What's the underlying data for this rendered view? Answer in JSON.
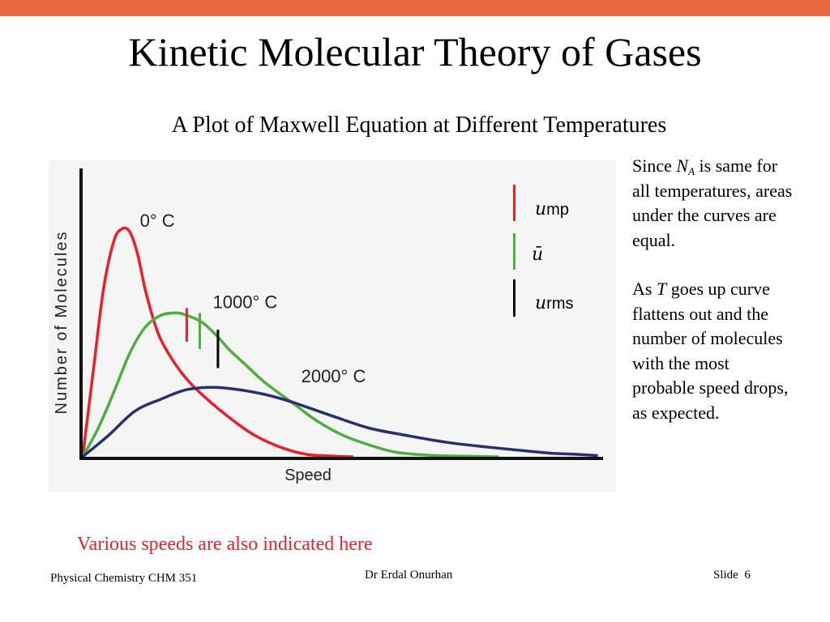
{
  "colors": {
    "accent": "#e8683f",
    "red": "#e8202a",
    "green": "#4caf3f",
    "navy": "#2a2e73"
  },
  "slide": {
    "title": "Kinetic Molecular Theory of Gases",
    "subtitle": "A Plot of Maxwell Equation at Different Temperatures"
  },
  "legend": {
    "items": [
      {
        "symbol": "u",
        "label": "mp",
        "color": "#e8202a"
      },
      {
        "symbol": "ū",
        "label": "",
        "color": "#4caf3f"
      },
      {
        "symbol": "u",
        "label": "rms",
        "color": "#000000"
      }
    ]
  },
  "side_text": {
    "p1_a": "Since ",
    "p1_symbol": "N",
    "p1_subscript": "A",
    "p1_b": " is same for all temperatures, areas under the curves are equal.",
    "p2_a": "As ",
    "p2_symbol": "T",
    "p2_b": " goes up curve flattens out and the number of molecules with the most probable speed drops, as expected."
  },
  "footnote": "Various speeds are also indicated here",
  "footer": {
    "left": "Physical Chemistry CHM 351",
    "center": "Dr Erdal Onurhan",
    "slide_label": "Slide",
    "slide_number": "6"
  },
  "chart_data": {
    "type": "line",
    "xlabel": "Speed",
    "ylabel": "Number of Molecules",
    "x_range": [
      0,
      100
    ],
    "y_range": [
      0,
      100
    ],
    "axis_ticks": false,
    "grid": false,
    "series": [
      {
        "name": "0° C",
        "color": "#e8202a",
        "x": [
          0,
          2,
          4,
          6,
          7.5,
          9,
          10.5,
          12,
          13.5,
          15,
          18,
          21,
          25,
          29,
          33,
          38,
          43,
          48,
          52
        ],
        "y": [
          0,
          35,
          70,
          90,
          95,
          94,
          85,
          70,
          58,
          49,
          38,
          30,
          22,
          15,
          9,
          4,
          1,
          0.3,
          0
        ]
      },
      {
        "name": "1000° C",
        "color": "#4caf3f",
        "x": [
          0,
          3,
          6,
          9,
          12,
          15,
          18,
          20,
          23,
          26,
          28,
          31,
          35,
          40,
          45,
          50,
          55,
          60,
          66,
          72,
          80
        ],
        "y": [
          0,
          12,
          27,
          43,
          54,
          59,
          60,
          59,
          56,
          50,
          45,
          39,
          31,
          23,
          15,
          9,
          5,
          2,
          0.7,
          0.3,
          0
        ]
      },
      {
        "name": "2000° C",
        "color": "#2a2e73",
        "x": [
          0,
          5,
          10,
          15,
          20,
          25,
          30,
          35,
          40,
          48,
          55,
          62,
          70,
          78,
          85,
          90,
          95,
          99
        ],
        "y": [
          0,
          9,
          19,
          24,
          28,
          29,
          28,
          26,
          23,
          17,
          12,
          9,
          6,
          4,
          2.5,
          1.5,
          1,
          0.5
        ]
      }
    ],
    "annotations": [
      {
        "text": "0° C",
        "x": 11,
        "y": 96
      },
      {
        "text": "1000° C",
        "x": 25,
        "y": 62
      },
      {
        "text": "2000° C",
        "x": 42,
        "y": 31
      }
    ],
    "speed_markers": [
      {
        "name": "ump",
        "x": 20,
        "color": "#e8202a"
      },
      {
        "name": "ū",
        "x": 22.5,
        "color": "#4caf3f"
      },
      {
        "name": "urms",
        "x": 26,
        "color": "#000000"
      }
    ]
  }
}
